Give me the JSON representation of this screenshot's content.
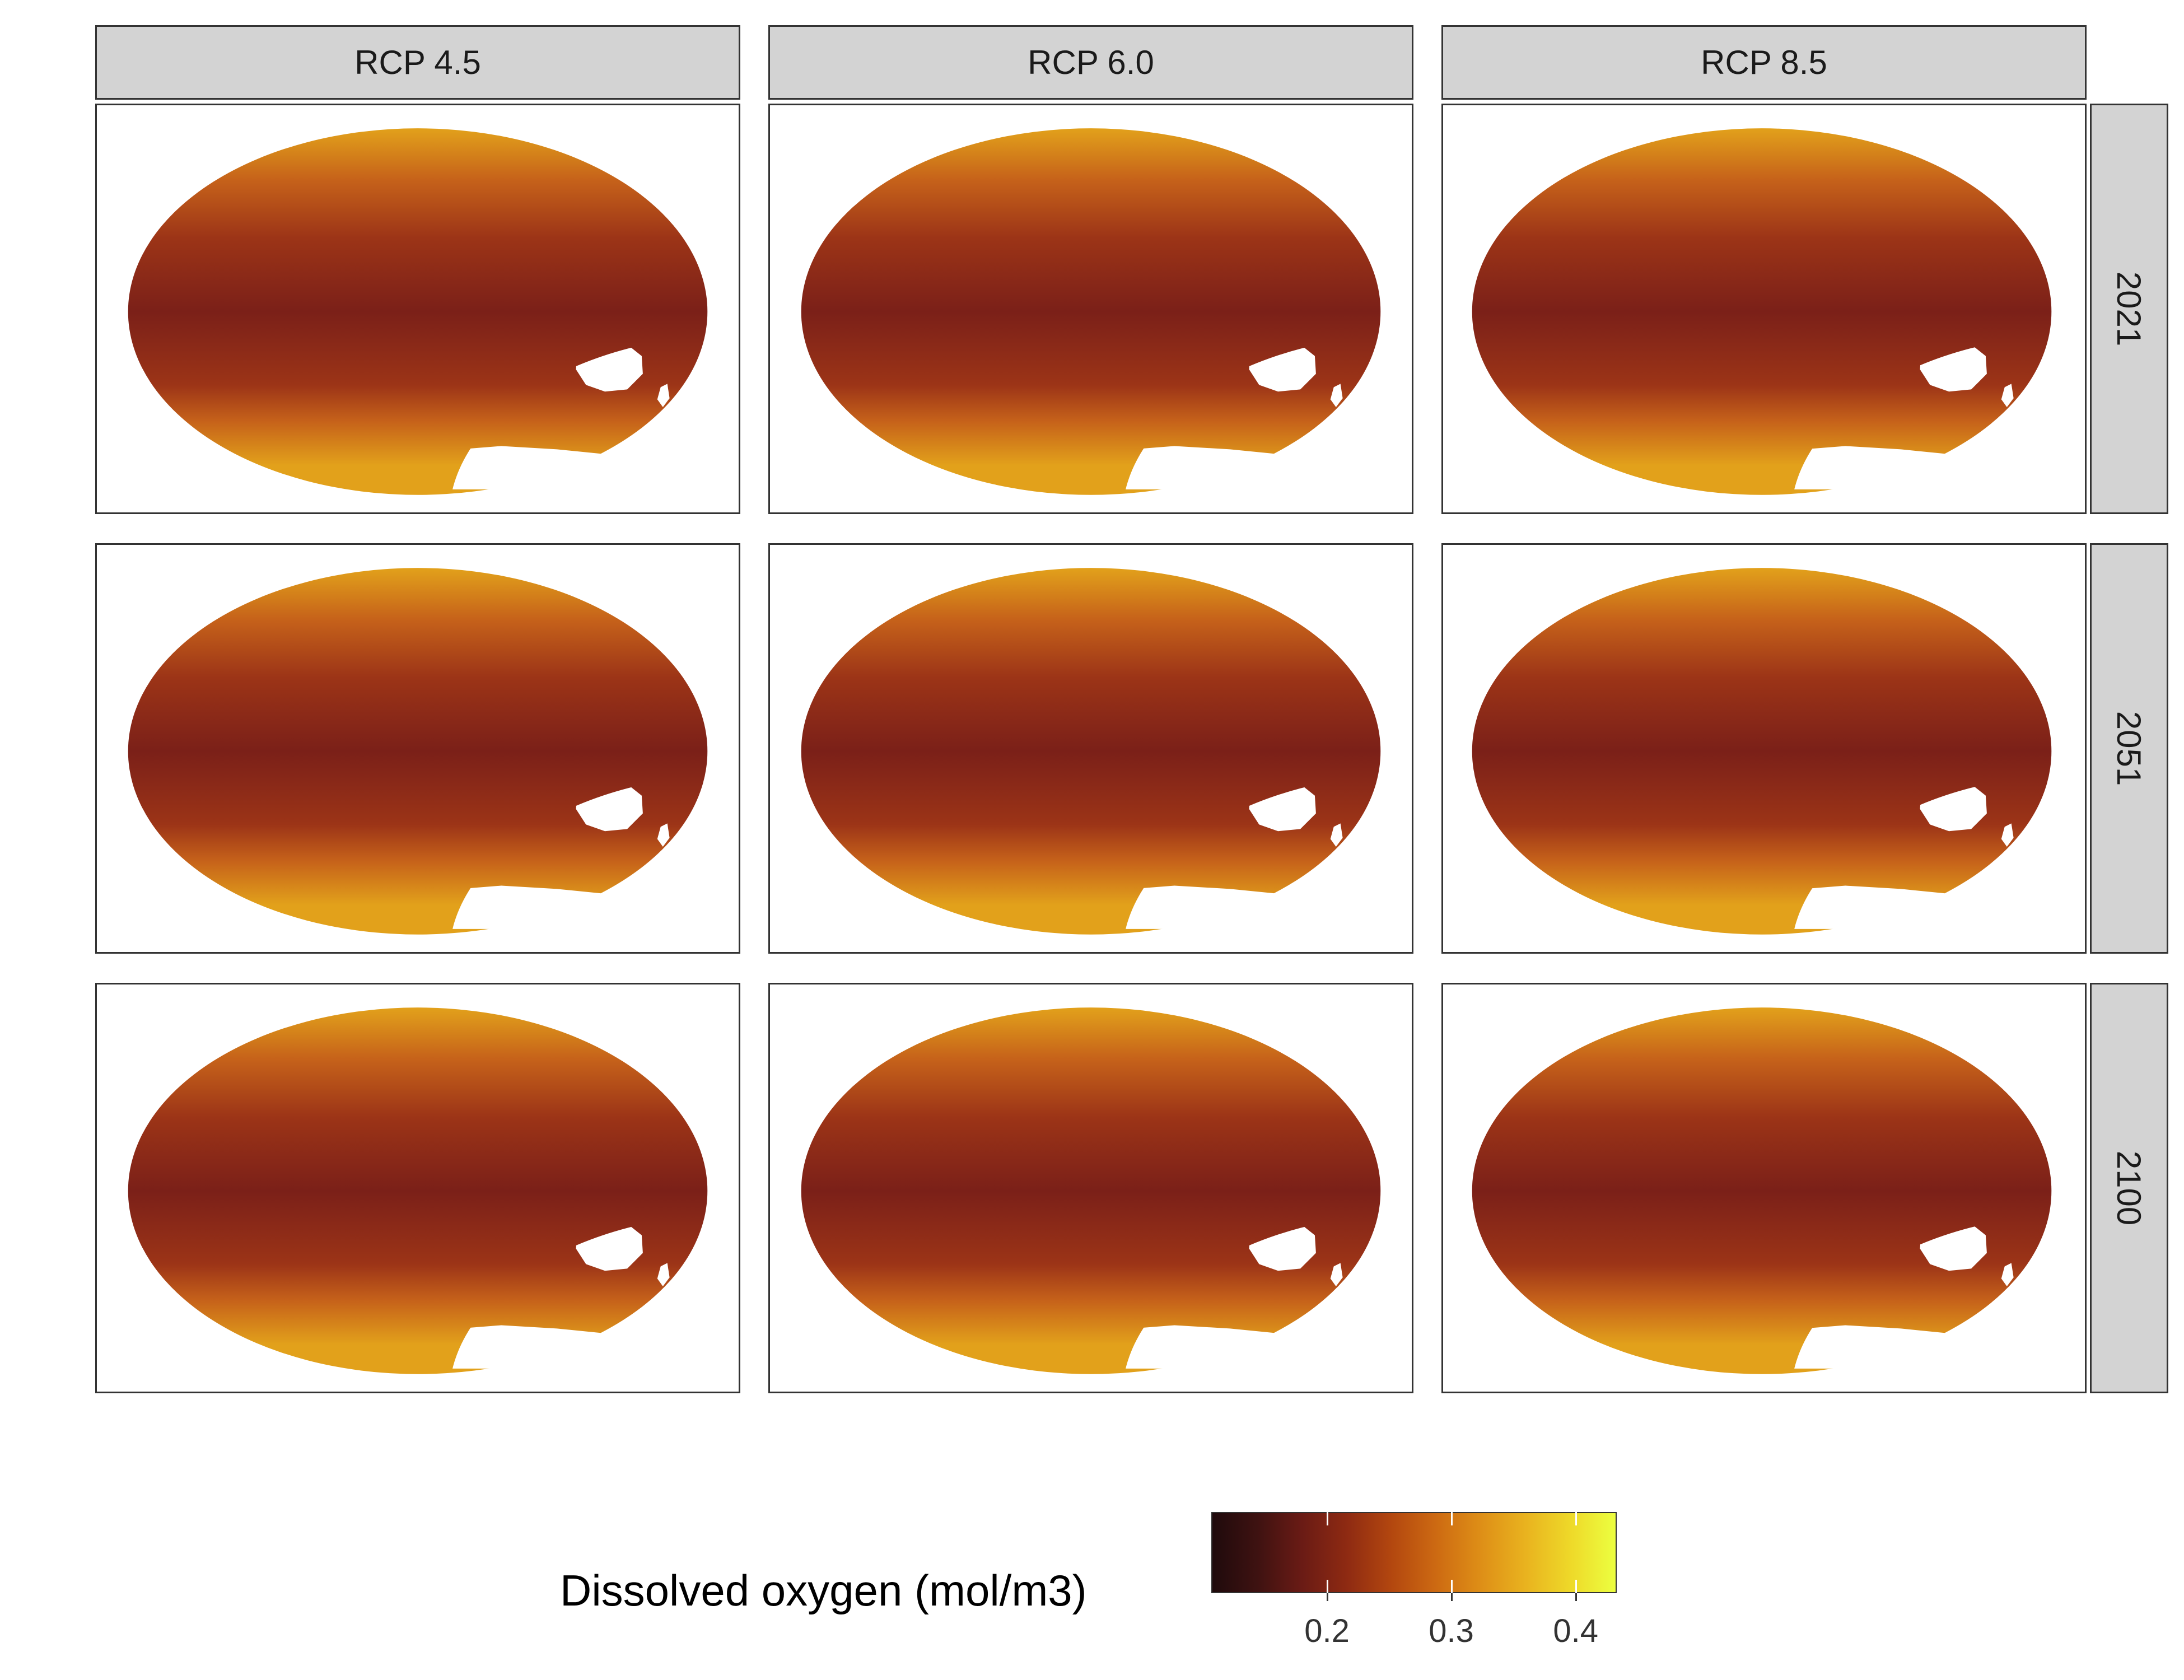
{
  "columns": [
    {
      "label": "RCP 4.5"
    },
    {
      "label": "RCP 6.0"
    },
    {
      "label": "RCP 8.5"
    }
  ],
  "rows": [
    {
      "label": "2021"
    },
    {
      "label": "2051"
    },
    {
      "label": "2100"
    }
  ],
  "legend": {
    "title": "Dissolved oxygen (mol/m3)",
    "ticks": [
      "0.2",
      "0.3",
      "0.4"
    ],
    "tick_values": [
      0.2,
      0.3,
      0.4
    ],
    "range": [
      0.107,
      0.433
    ],
    "colors": [
      "#1f0a0c",
      "#3e1211",
      "#6a1b15",
      "#8e2a12",
      "#b3470f",
      "#cd6a12",
      "#de8f17",
      "#e9b31f",
      "#eed929",
      "#ecff40"
    ]
  },
  "map": {
    "projection": "Mollweide",
    "land_color": "#ffffff",
    "ocean_colors": {
      "polar": "#e2a11b",
      "high_latitude": "#c6621a",
      "mid_latitude": "#9c3417",
      "tropics": "#7b2018"
    }
  }
}
